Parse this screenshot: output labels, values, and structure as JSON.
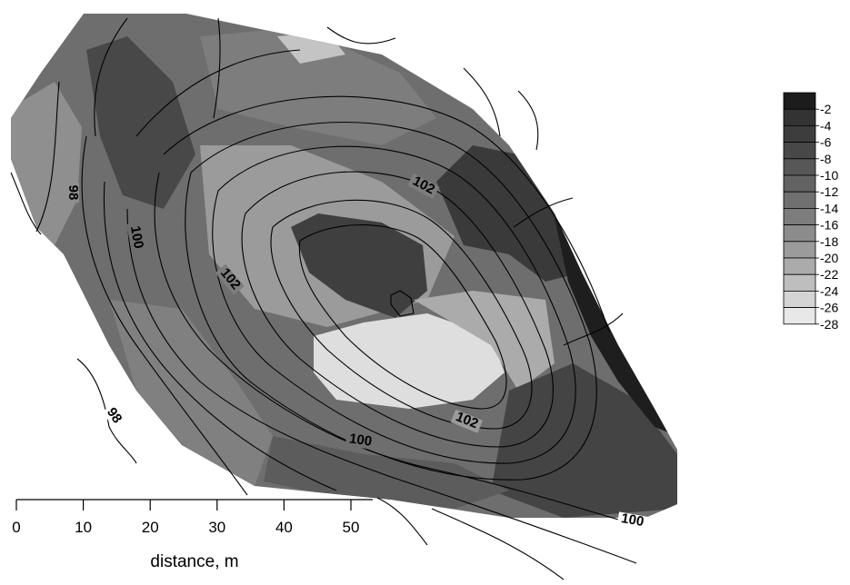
{
  "contour_labels": [
    "98",
    "100",
    "102",
    "102",
    "102",
    "100",
    "100",
    "98"
  ],
  "scale_bar": {
    "ticks": [
      "0",
      "10",
      "20",
      "30",
      "40",
      "50"
    ],
    "title": "distance, m"
  },
  "legend": {
    "labels": [
      "-2",
      "-4",
      "-6",
      "-8",
      "-10",
      "-12",
      "-14",
      "-16",
      "-18",
      "-20",
      "-22",
      "-24",
      "-26",
      "-28"
    ],
    "colors": [
      "#1c1c1c",
      "#333333",
      "#3d3d3d",
      "#484848",
      "#575757",
      "#636363",
      "#707070",
      "#7d7d7d",
      "#8c8c8c",
      "#9b9b9b",
      "#ababab",
      "#bebebe",
      "#d4d4d4",
      "#e8e8e8"
    ]
  }
}
